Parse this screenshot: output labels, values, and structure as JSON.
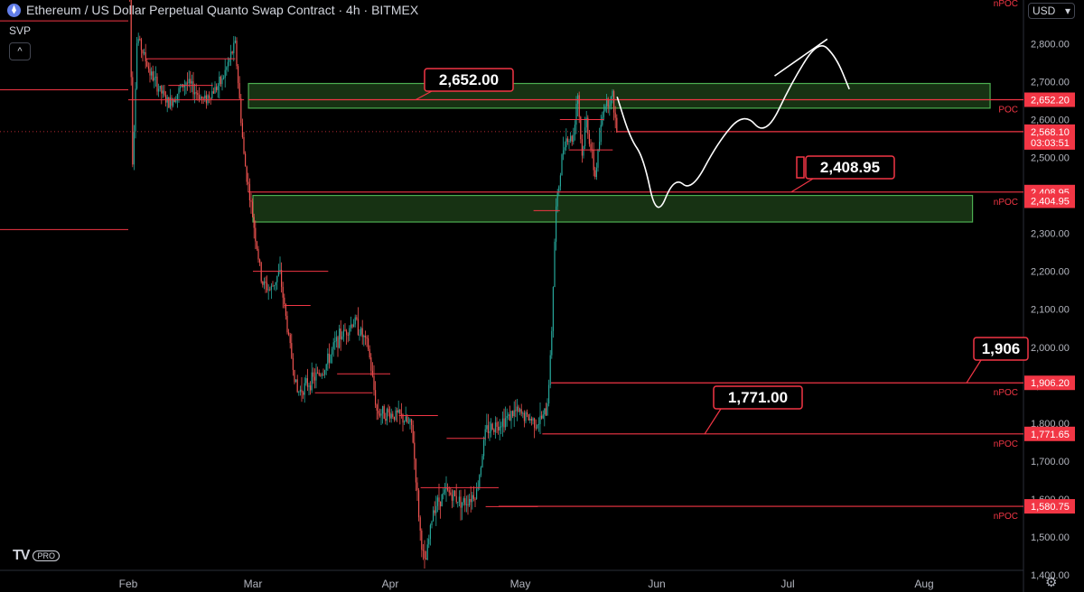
{
  "header": {
    "title": "Ethereum / US Dollar Perpetual Quanto Swap Contract · 4h · BITMEX",
    "indicator": "SVP",
    "collapse": "^",
    "currency": "USD",
    "currency_arrow": "▾"
  },
  "logo": {
    "mark": "TV",
    "badge": "PRO"
  },
  "chart_data": {
    "type": "candlestick",
    "title": "Ethereum / US Dollar Perpetual Quanto Swap Contract · 4h · BITMEX",
    "x_labels": [
      "Feb",
      "Mar",
      "Apr",
      "May",
      "Jun",
      "Jul",
      "Aug"
    ],
    "y_ticks": [
      1400,
      1500,
      1600,
      1700,
      1800,
      1900,
      2000,
      2100,
      2200,
      2300,
      2400,
      2500,
      2600,
      2700,
      2800
    ],
    "y_tick_labels": [
      "1,400.00",
      "1,500.00",
      "1,600.00",
      "1,700.00",
      "1,800.00",
      "1,900.00",
      "2,000.00",
      "2,100.00",
      "2,200.00",
      "2,300.00",
      "2,400.00",
      "2,500.00",
      "2,600.00",
      "2,700.00",
      "2,800.00"
    ],
    "ylim": [
      1355,
      2915
    ],
    "price_path": [
      [
        "Feb 01",
        3150
      ],
      [
        "Feb 02",
        2480
      ],
      [
        "Feb 03",
        2820
      ],
      [
        "Feb 06",
        2720
      ],
      [
        "Feb 10",
        2640
      ],
      [
        "Feb 14",
        2700
      ],
      [
        "Feb 18",
        2650
      ],
      [
        "Feb 22",
        2700
      ],
      [
        "Feb 25",
        2800
      ],
      [
        "Feb 27",
        2500
      ],
      [
        "Mar 01",
        2340
      ],
      [
        "Mar 03",
        2170
      ],
      [
        "Mar 05",
        2150
      ],
      [
        "Mar 07",
        2200
      ],
      [
        "Mar 09",
        2030
      ],
      [
        "Mar 11",
        1880
      ],
      [
        "Mar 14",
        1910
      ],
      [
        "Mar 17",
        1940
      ],
      [
        "Mar 20",
        2020
      ],
      [
        "Mar 24",
        2070
      ],
      [
        "Mar 27",
        2000
      ],
      [
        "Mar 29",
        1830
      ],
      [
        "Apr 03",
        1820
      ],
      [
        "Apr 06",
        1790
      ],
      [
        "Apr 08",
        1500
      ],
      [
        "Apr 09",
        1420
      ],
      [
        "Apr 11",
        1580
      ],
      [
        "Apr 14",
        1620
      ],
      [
        "Apr 18",
        1590
      ],
      [
        "Apr 21",
        1620
      ],
      [
        "Apr 23",
        1780
      ],
      [
        "Apr 26",
        1800
      ],
      [
        "Apr 30",
        1830
      ],
      [
        "May 05",
        1800
      ],
      [
        "May 07",
        1830
      ],
      [
        "May 08",
        2000
      ],
      [
        "May 09",
        2350
      ],
      [
        "May 11",
        2550
      ],
      [
        "May 13",
        2550
      ],
      [
        "May 14",
        2680
      ],
      [
        "May 15",
        2500
      ],
      [
        "May 16",
        2600
      ],
      [
        "May 18",
        2450
      ],
      [
        "May 20",
        2640
      ],
      [
        "May 22",
        2660
      ],
      [
        "May 23",
        2560
      ]
    ],
    "projection_path": [
      [
        "May 23",
        2660
      ],
      [
        "May 26",
        2550
      ],
      [
        "May 29",
        2500
      ],
      [
        "Jun 01",
        2335
      ],
      [
        "Jun 05",
        2450
      ],
      [
        "Jun 09",
        2410
      ],
      [
        "Jun 15",
        2540
      ],
      [
        "Jun 21",
        2620
      ],
      [
        "Jun 26",
        2555
      ],
      [
        "Jul 02",
        2700
      ],
      [
        "Jul 08",
        2810
      ],
      [
        "Jul 12",
        2765
      ],
      [
        "Jul 15",
        2680
      ]
    ],
    "zones": [
      {
        "from": "Feb 28",
        "to": "Aug 16",
        "low": 2630,
        "high": 2695
      },
      {
        "from": "Mar 01",
        "to": "Aug 12",
        "low": 2330,
        "high": 2400
      }
    ],
    "npoc_lines": [
      {
        "price": 2652.2,
        "label": "2,652.20",
        "tag": "POC"
      },
      {
        "price": 2408.95,
        "label": "2,408.95",
        "tag": "nPOC"
      },
      {
        "price": 1906.2,
        "label": "1,906.20",
        "tag": "nPOC"
      },
      {
        "price": 1771.65,
        "label": "1,771.65",
        "tag": "nPOC"
      },
      {
        "price": 1580.75,
        "label": "1,580.75",
        "tag": "nPOC"
      }
    ],
    "top_tag": "nPOC",
    "extra_axis_labels": [
      {
        "price": 2404.95,
        "label": "2,404.95"
      }
    ],
    "current_price": {
      "price": 2568.1,
      "label": "2,568.10",
      "countdown": "03:03:51"
    },
    "callouts": [
      {
        "text": "2,652.00",
        "price": 2652
      },
      {
        "text": "2,408.95",
        "price": 2408.95
      },
      {
        "text": "1,771.00",
        "price": 1771
      },
      {
        "text": "1,906",
        "price": 1906
      }
    ],
    "colors": {
      "up": "#26a69a",
      "down": "#ef5350",
      "line": "#f23645",
      "zone_fill": "#1b3b16",
      "zone_border": "#4caf50",
      "projection": "#ffffff",
      "background": "#000000"
    }
  }
}
